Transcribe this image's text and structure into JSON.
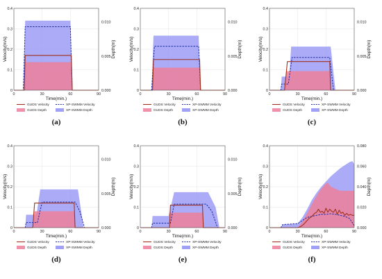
{
  "figure": {
    "colors": {
      "guds_velocity": "#a0301c",
      "guds_depth": "#ec7f9a",
      "xp_velocity": "#1a2aa0",
      "xp_depth": "#8f8ff4",
      "axis": "#555555"
    }
  },
  "chart_data": [
    {
      "type": "line",
      "panel_label": "(a)",
      "xlabel": "Time(min.)",
      "ylabel": "Velocity(m/s)",
      "y2label": "Depth(m)",
      "xlim": [
        0,
        90
      ],
      "ylim": [
        0,
        0.4
      ],
      "y2lim": [
        0,
        0.012
      ],
      "xticks": [
        "0",
        "30",
        "60",
        "90"
      ],
      "yticks": [
        "0",
        "0.1",
        "0.2",
        "0.3",
        "0.4"
      ],
      "y2ticks": [
        "0.000",
        "0.005",
        "0.010"
      ],
      "legend": [
        "GUDS Velocity",
        "XP-SWMM Velocity",
        "GUDS Depth",
        "XP-SWMM Depth"
      ],
      "series": [
        {
          "name": "GUDS Velocity",
          "kind": "line",
          "x": [
            0,
            11,
            12,
            61,
            62,
            90
          ],
          "y": [
            0,
            0,
            0.17,
            0.17,
            0,
            0
          ]
        },
        {
          "name": "XP-SWMM Velocity",
          "kind": "dashed",
          "x": [
            0,
            10,
            12,
            60,
            62,
            90
          ],
          "y": [
            0,
            0,
            0.31,
            0.31,
            0,
            0
          ]
        },
        {
          "name": "GUDS Depth",
          "kind": "area",
          "axis": "y2",
          "x": [
            0,
            11,
            12,
            61,
            62,
            90
          ],
          "y": [
            0,
            0,
            0.0041,
            0.0041,
            0,
            0
          ]
        },
        {
          "name": "XP-SWMM Depth",
          "kind": "area",
          "axis": "y2",
          "x": [
            0,
            10,
            12,
            60,
            62,
            90
          ],
          "y": [
            0,
            0,
            0.0102,
            0.0102,
            0,
            0
          ]
        }
      ]
    },
    {
      "type": "line",
      "panel_label": "(b)",
      "xlabel": "Time(min.)",
      "ylabel": "Velocity(m/s)",
      "y2label": "Depth(m)",
      "xlim": [
        0,
        90
      ],
      "ylim": [
        0,
        0.4
      ],
      "y2lim": [
        0,
        0.012
      ],
      "xticks": [
        "0",
        "30",
        "60",
        "90"
      ],
      "yticks": [
        "0",
        "0.1",
        "0.2",
        "0.3",
        "0.4"
      ],
      "y2ticks": [
        "0.000",
        "0.005",
        "0.010"
      ],
      "legend": [
        "GUDS Velocity",
        "XP-SWMM Velocity",
        "GUDS Depth",
        "XP-SWMM Depth"
      ],
      "series": [
        {
          "name": "GUDS Velocity",
          "kind": "line",
          "x": [
            0,
            13,
            14,
            63,
            64,
            90
          ],
          "y": [
            0,
            0,
            0.15,
            0.15,
            0,
            0
          ]
        },
        {
          "name": "XP-SWMM Velocity",
          "kind": "dashed",
          "x": [
            0,
            12,
            15,
            62,
            64,
            90
          ],
          "y": [
            0,
            0,
            0.215,
            0.215,
            0,
            0
          ]
        },
        {
          "name": "GUDS Depth",
          "kind": "area",
          "axis": "y2",
          "x": [
            0,
            13,
            14,
            63,
            64,
            90
          ],
          "y": [
            0,
            0,
            0.0033,
            0.0033,
            0,
            0
          ]
        },
        {
          "name": "XP-SWMM Depth",
          "kind": "area",
          "axis": "y2",
          "x": [
            0,
            12,
            14,
            62,
            64,
            90
          ],
          "y": [
            0,
            0,
            0.008,
            0.008,
            0,
            0
          ]
        }
      ]
    },
    {
      "type": "line",
      "panel_label": "(c)",
      "xlabel": "Time(min.)",
      "ylabel": "Velocity(m/s)",
      "y2label": "Depth(m)",
      "xlim": [
        0,
        90
      ],
      "ylim": [
        0,
        0.4
      ],
      "y2lim": [
        0,
        0.012
      ],
      "xticks": [
        "0",
        "30",
        "60",
        "90"
      ],
      "yticks": [
        "0",
        "0.1",
        "0.2",
        "0.3",
        "0.4"
      ],
      "y2ticks": [
        "0.000",
        "0.005",
        "0.010"
      ],
      "legend": [
        "GUDS Velocity",
        "XP-SWMM Velocity",
        "GUDS Depth",
        "XP-SWMM Depth"
      ],
      "series": [
        {
          "name": "GUDS Velocity",
          "kind": "line",
          "x": [
            0,
            16,
            19,
            64,
            65,
            90
          ],
          "y": [
            0,
            0,
            0.14,
            0.14,
            0,
            0
          ]
        },
        {
          "name": "XP-SWMM Velocity",
          "kind": "dashed",
          "x": [
            0,
            12,
            13,
            20,
            24,
            64,
            68,
            90
          ],
          "y": [
            0,
            0,
            0.03,
            0.03,
            0.16,
            0.16,
            0,
            0
          ]
        },
        {
          "name": "GUDS Depth",
          "kind": "area",
          "axis": "y2",
          "x": [
            0,
            16,
            18,
            64,
            65,
            90
          ],
          "y": [
            0,
            0,
            0.0028,
            0.0028,
            0,
            0
          ]
        },
        {
          "name": "XP-SWMM Depth",
          "kind": "area",
          "axis": "y2",
          "x": [
            0,
            12,
            13,
            21,
            23,
            65,
            70,
            90
          ],
          "y": [
            0,
            0,
            0.002,
            0.002,
            0.0064,
            0.0064,
            0,
            0
          ]
        }
      ]
    },
    {
      "type": "line",
      "panel_label": "(d)",
      "xlabel": "Time(min.)",
      "ylabel": "Velocity(m/s)",
      "y2label": "Depth(m)",
      "xlim": [
        0,
        90
      ],
      "ylim": [
        0,
        0.4
      ],
      "y2lim": [
        0,
        0.012
      ],
      "xticks": [
        "0",
        "30",
        "60",
        "90"
      ],
      "yticks": [
        "0",
        "0.1",
        "0.2",
        "0.3",
        "0.4"
      ],
      "y2ticks": [
        "0.000",
        "0.005",
        "0.010"
      ],
      "legend": [
        "GUDS Velocity",
        "XP-SWMM Velocity",
        "GUDS Depth",
        "XP-SWMM Depth"
      ],
      "series": [
        {
          "name": "GUDS Velocity",
          "kind": "line",
          "x": [
            0,
            20,
            22,
            64,
            65,
            90
          ],
          "y": [
            0,
            0,
            0.12,
            0.12,
            0,
            0
          ]
        },
        {
          "name": "XP-SWMM Velocity",
          "kind": "dashed",
          "x": [
            0,
            12,
            13,
            25,
            30,
            65,
            70,
            75,
            90
          ],
          "y": [
            0,
            0,
            0.025,
            0.025,
            0.125,
            0.125,
            0.08,
            0,
            0
          ]
        },
        {
          "name": "GUDS Depth",
          "kind": "area",
          "axis": "y2",
          "x": [
            0,
            20,
            22,
            64,
            65,
            90
          ],
          "y": [
            0,
            0,
            0.0024,
            0.0024,
            0,
            0
          ]
        },
        {
          "name": "XP-SWMM Depth",
          "kind": "area",
          "axis": "y2",
          "x": [
            0,
            12,
            13,
            24,
            28,
            68,
            74,
            90
          ],
          "y": [
            0,
            0,
            0.0019,
            0.0019,
            0.0056,
            0.0056,
            0,
            0
          ]
        }
      ]
    },
    {
      "type": "line",
      "panel_label": "(e)",
      "xlabel": "Time(min.)",
      "ylabel": "Velocity(m/s)",
      "y2label": "Depth(m)",
      "xlim": [
        0,
        90
      ],
      "ylim": [
        0,
        0.4
      ],
      "y2lim": [
        0,
        0.012
      ],
      "xticks": [
        "0",
        "30",
        "60",
        "90"
      ],
      "yticks": [
        "0",
        "0.1",
        "0.2",
        "0.3",
        "0.4"
      ],
      "y2ticks": [
        "0.000",
        "0.005",
        "0.010"
      ],
      "legend": [
        "GUDS Velocity",
        "XP-SWMM Velocity",
        "GUDS Depth",
        "XP-SWMM Depth"
      ],
      "series": [
        {
          "name": "GUDS Velocity",
          "kind": "line",
          "x": [
            0,
            31,
            32,
            66,
            67,
            90
          ],
          "y": [
            0,
            0,
            0.11,
            0.11,
            0,
            0
          ]
        },
        {
          "name": "XP-SWMM Velocity",
          "kind": "dashed",
          "x": [
            0,
            12,
            13,
            32,
            36,
            70,
            76,
            82,
            90
          ],
          "y": [
            0,
            0,
            0.022,
            0.022,
            0.115,
            0.115,
            0.08,
            0,
            0
          ]
        },
        {
          "name": "GUDS Depth",
          "kind": "area",
          "axis": "y2",
          "x": [
            0,
            31,
            32,
            66,
            67,
            90
          ],
          "y": [
            0,
            0,
            0.0022,
            0.0022,
            0,
            0
          ]
        },
        {
          "name": "XP-SWMM Depth",
          "kind": "area",
          "axis": "y2",
          "x": [
            0,
            12,
            13,
            30,
            36,
            72,
            80,
            84,
            90
          ],
          "y": [
            0,
            0,
            0.0017,
            0.0017,
            0.0052,
            0.0052,
            0.003,
            0,
            0
          ]
        }
      ]
    },
    {
      "type": "line",
      "panel_label": "(f)",
      "xlabel": "Time(min.)",
      "ylabel": "Velocity(m/s)",
      "y2label": "Depth(m)",
      "xlim": [
        0,
        90
      ],
      "ylim": [
        0,
        0.4
      ],
      "y2lim": [
        0,
        0.08
      ],
      "xticks": [
        "0",
        "30",
        "60",
        "90"
      ],
      "yticks": [
        "0",
        "0.1",
        "0.2",
        "0.3",
        "0.4"
      ],
      "y2ticks": [
        "0.000",
        "0.020",
        "0.040",
        "0.060",
        "0.080"
      ],
      "legend": [
        "GUDS Velocity",
        "XP-SWMM Velocity",
        "GUDS Depth",
        "XP-SWMM Depth"
      ],
      "series": [
        {
          "name": "GUDS Velocity",
          "kind": "line",
          "x": [
            0,
            30,
            33,
            36,
            39,
            42,
            45,
            48,
            50,
            52,
            54,
            56,
            58,
            60,
            62,
            64,
            66,
            68,
            70,
            72,
            74,
            76,
            78,
            80,
            82,
            84,
            86,
            88,
            90
          ],
          "y": [
            0,
            0,
            0.005,
            0.015,
            0.03,
            0.045,
            0.055,
            0.07,
            0.075,
            0.09,
            0.075,
            0.08,
            0.07,
            0.095,
            0.075,
            0.09,
            0.08,
            0.075,
            0.09,
            0.065,
            0.085,
            0.07,
            0.075,
            0.06,
            0.07,
            0.06,
            0.065,
            0.06,
            0.06
          ]
        },
        {
          "name": "XP-SWMM Velocity",
          "kind": "dashed",
          "x": [
            0,
            12,
            14,
            30,
            35,
            40,
            45,
            50,
            55,
            60,
            65,
            70,
            75,
            80,
            85,
            90
          ],
          "y": [
            0,
            0,
            0.015,
            0.02,
            0.035,
            0.05,
            0.055,
            0.06,
            0.065,
            0.065,
            0.068,
            0.065,
            0.06,
            0.055,
            0.045,
            0.01
          ]
        },
        {
          "name": "GUDS Depth",
          "kind": "area",
          "axis": "y2",
          "x": [
            0,
            30,
            35,
            40,
            45,
            50,
            55,
            60,
            62,
            65,
            70,
            75,
            80,
            85,
            90
          ],
          "y": [
            0,
            0,
            0.006,
            0.014,
            0.023,
            0.031,
            0.038,
            0.043,
            0.044,
            0.04,
            0.038,
            0.036,
            0.036,
            0.036,
            0.036
          ]
        },
        {
          "name": "XP-SWMM Depth",
          "kind": "area",
          "axis": "y2",
          "x": [
            0,
            12,
            14,
            30,
            35,
            40,
            45,
            50,
            55,
            60,
            65,
            70,
            75,
            80,
            85,
            88,
            90
          ],
          "y": [
            0,
            0,
            0.003,
            0.004,
            0.01,
            0.018,
            0.027,
            0.034,
            0.04,
            0.045,
            0.05,
            0.054,
            0.058,
            0.061,
            0.064,
            0.065,
            0.062
          ]
        }
      ]
    }
  ]
}
